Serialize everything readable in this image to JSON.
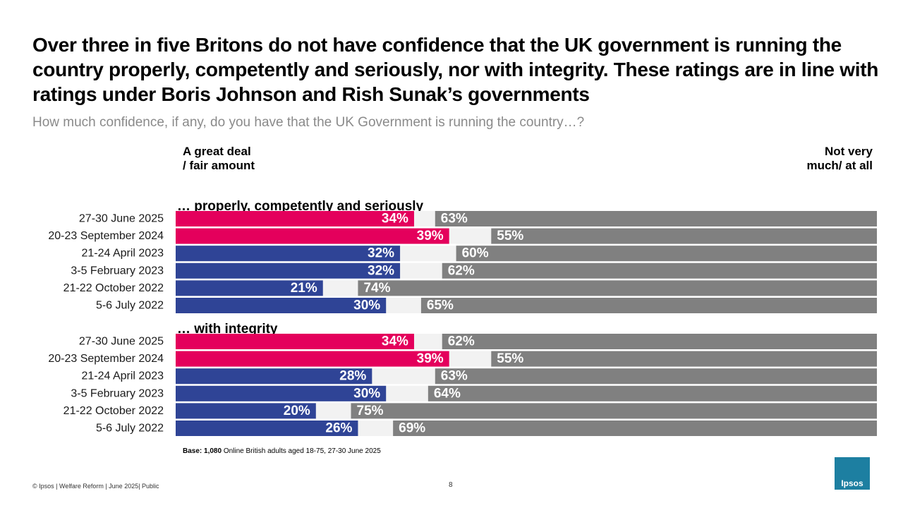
{
  "title": "Over three in five Britons do not have confidence that the UK government is running the country properly, competently and seriously, nor with integrity. These ratings are in line with ratings under Boris Johnson and Rish Sunak’s governments",
  "subtitle": "How much confidence, if any, do you have that the UK Government is running the country…?",
  "legend_left": [
    "A great deal",
    "/ fair amount"
  ],
  "legend_right": [
    "Not very",
    "much/ at all"
  ],
  "base_bold": "Base: 1,080",
  "base_rest": " Online British adults aged 18-75, 27-30 June 2025",
  "footer": "© Ipsos | Welfare Reform | June 2025| Public",
  "page_number": "8",
  "logo_text": "Ipsos",
  "colors": {
    "recent": "#e4005c",
    "earlier": "#2f4496",
    "negative": "#808080",
    "gap": "#f2f2f2",
    "logo": "#1d7fa1"
  },
  "chart_data": {
    "type": "bar",
    "orientation": "horizontal stacked",
    "scale": [
      0,
      100
    ],
    "series": [
      {
        "name": "A great deal / fair amount"
      },
      {
        "name": "Not very much/ at all"
      }
    ],
    "groups": [
      {
        "label": "… properly, competently and seriously",
        "rows": [
          {
            "date": "27-30 June 2025",
            "positive": 34,
            "negative": 63,
            "highlight": true
          },
          {
            "date": "20-23 September 2024",
            "positive": 39,
            "negative": 55,
            "highlight": true
          },
          {
            "date": "21-24 April 2023",
            "positive": 32,
            "negative": 60,
            "highlight": false
          },
          {
            "date": "3-5 February 2023",
            "positive": 32,
            "negative": 62,
            "highlight": false
          },
          {
            "date": "21-22 October 2022",
            "positive": 21,
            "negative": 74,
            "highlight": false
          },
          {
            "date": "5-6 July 2022",
            "positive": 30,
            "negative": 65,
            "highlight": false
          }
        ]
      },
      {
        "label": "… with integrity",
        "rows": [
          {
            "date": "27-30 June 2025",
            "positive": 34,
            "negative": 62,
            "highlight": true
          },
          {
            "date": "20-23 September 2024",
            "positive": 39,
            "negative": 55,
            "highlight": true
          },
          {
            "date": "21-24 April 2023",
            "positive": 28,
            "negative": 63,
            "highlight": false
          },
          {
            "date": "3-5 February 2023",
            "positive": 30,
            "negative": 64,
            "highlight": false
          },
          {
            "date": "21-22 October 2022",
            "positive": 20,
            "negative": 75,
            "highlight": false
          },
          {
            "date": "5-6 July 2022",
            "positive": 26,
            "negative": 69,
            "highlight": false
          }
        ]
      }
    ]
  }
}
